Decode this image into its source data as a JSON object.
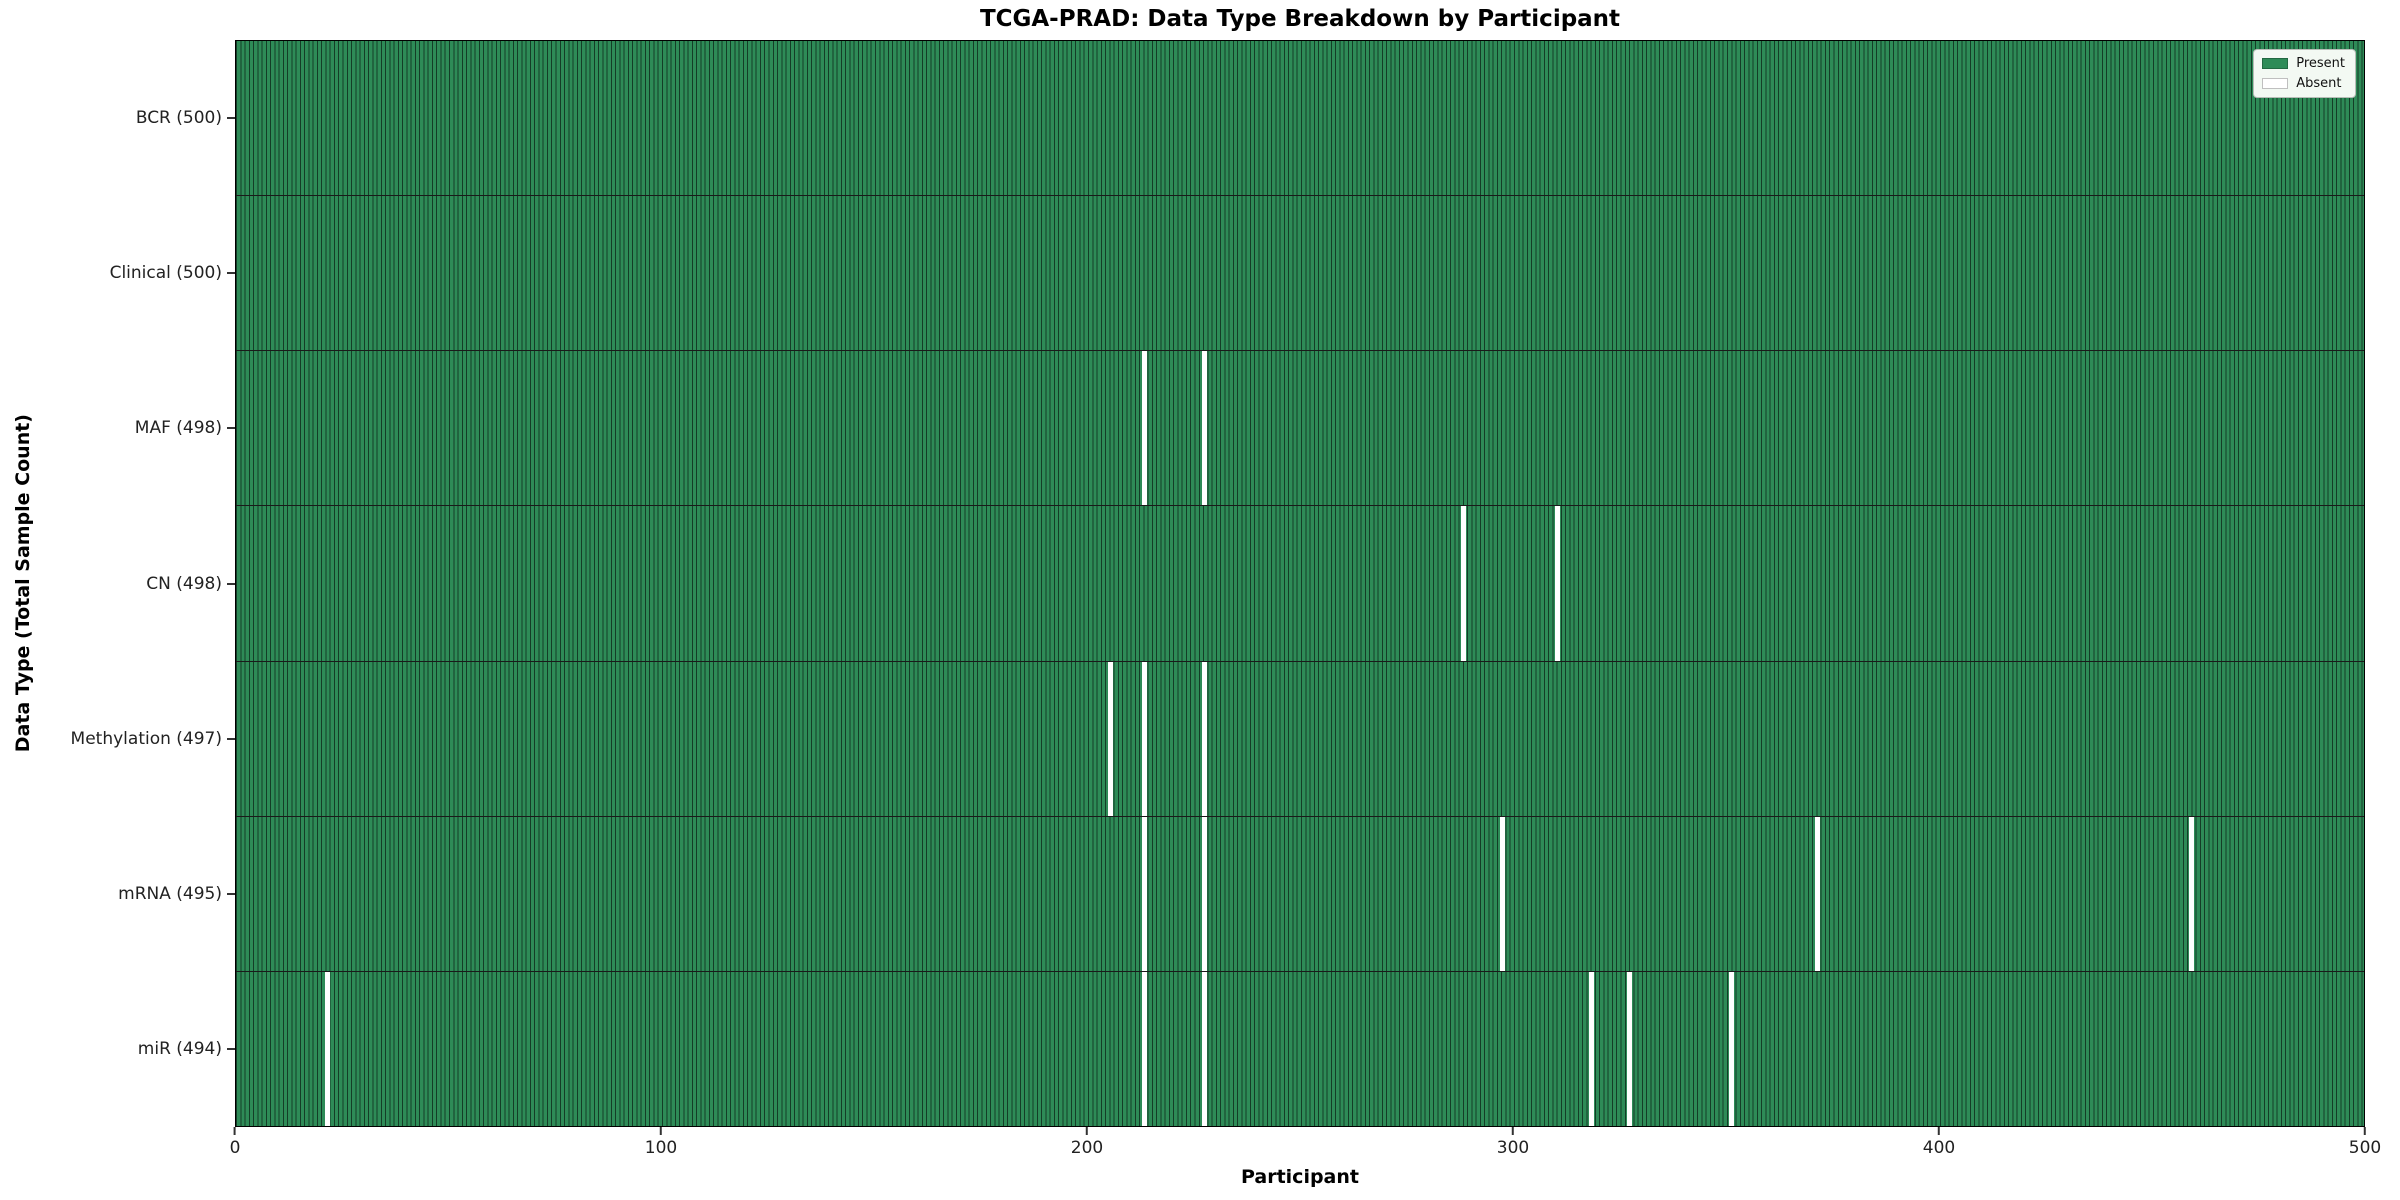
{
  "title": "TCGA-PRAD: Data Type Breakdown by Participant",
  "xlabel": "Participant",
  "ylabel": "Data Type (Total Sample Count)",
  "legend": {
    "present_label": "Present",
    "absent_label": "Absent"
  },
  "colors": {
    "present": "#2e8b57",
    "bar_edge": "#143d27",
    "absent": "#ffffff",
    "divider": "#1a1a1a",
    "spine": "#000000",
    "legend_bg": "#f3f9f3"
  },
  "chart_data": {
    "type": "heatmap",
    "title": "TCGA-PRAD: Data Type Breakdown by Participant",
    "xlabel": "Participant",
    "ylabel": "Data Type (Total Sample Count)",
    "x_range": [
      0,
      500
    ],
    "x_ticks": [
      0,
      100,
      200,
      300,
      400,
      500
    ],
    "legend_position": "upper right",
    "grid": false,
    "value_legend": {
      "present": "Present",
      "absent": "Absent"
    },
    "rows": [
      {
        "name": "BCR",
        "label": "BCR (500)",
        "count": 500,
        "absent_participants": []
      },
      {
        "name": "Clinical",
        "label": "Clinical (500)",
        "count": 500,
        "absent_participants": []
      },
      {
        "name": "MAF",
        "label": "MAF (498)",
        "count": 498,
        "absent_participants": [
          213,
          227
        ]
      },
      {
        "name": "CN",
        "label": "CN (498)",
        "count": 498,
        "absent_participants": [
          288,
          310
        ]
      },
      {
        "name": "Methylation",
        "label": "Methylation (497)",
        "count": 497,
        "absent_participants": [
          205,
          213,
          227
        ]
      },
      {
        "name": "mRNA",
        "label": "mRNA (495)",
        "count": 495,
        "absent_participants": [
          213,
          227,
          297,
          371,
          459
        ]
      },
      {
        "name": "miR",
        "label": "miR (494)",
        "count": 494,
        "absent_participants": [
          21,
          213,
          227,
          318,
          327,
          351
        ]
      }
    ]
  }
}
